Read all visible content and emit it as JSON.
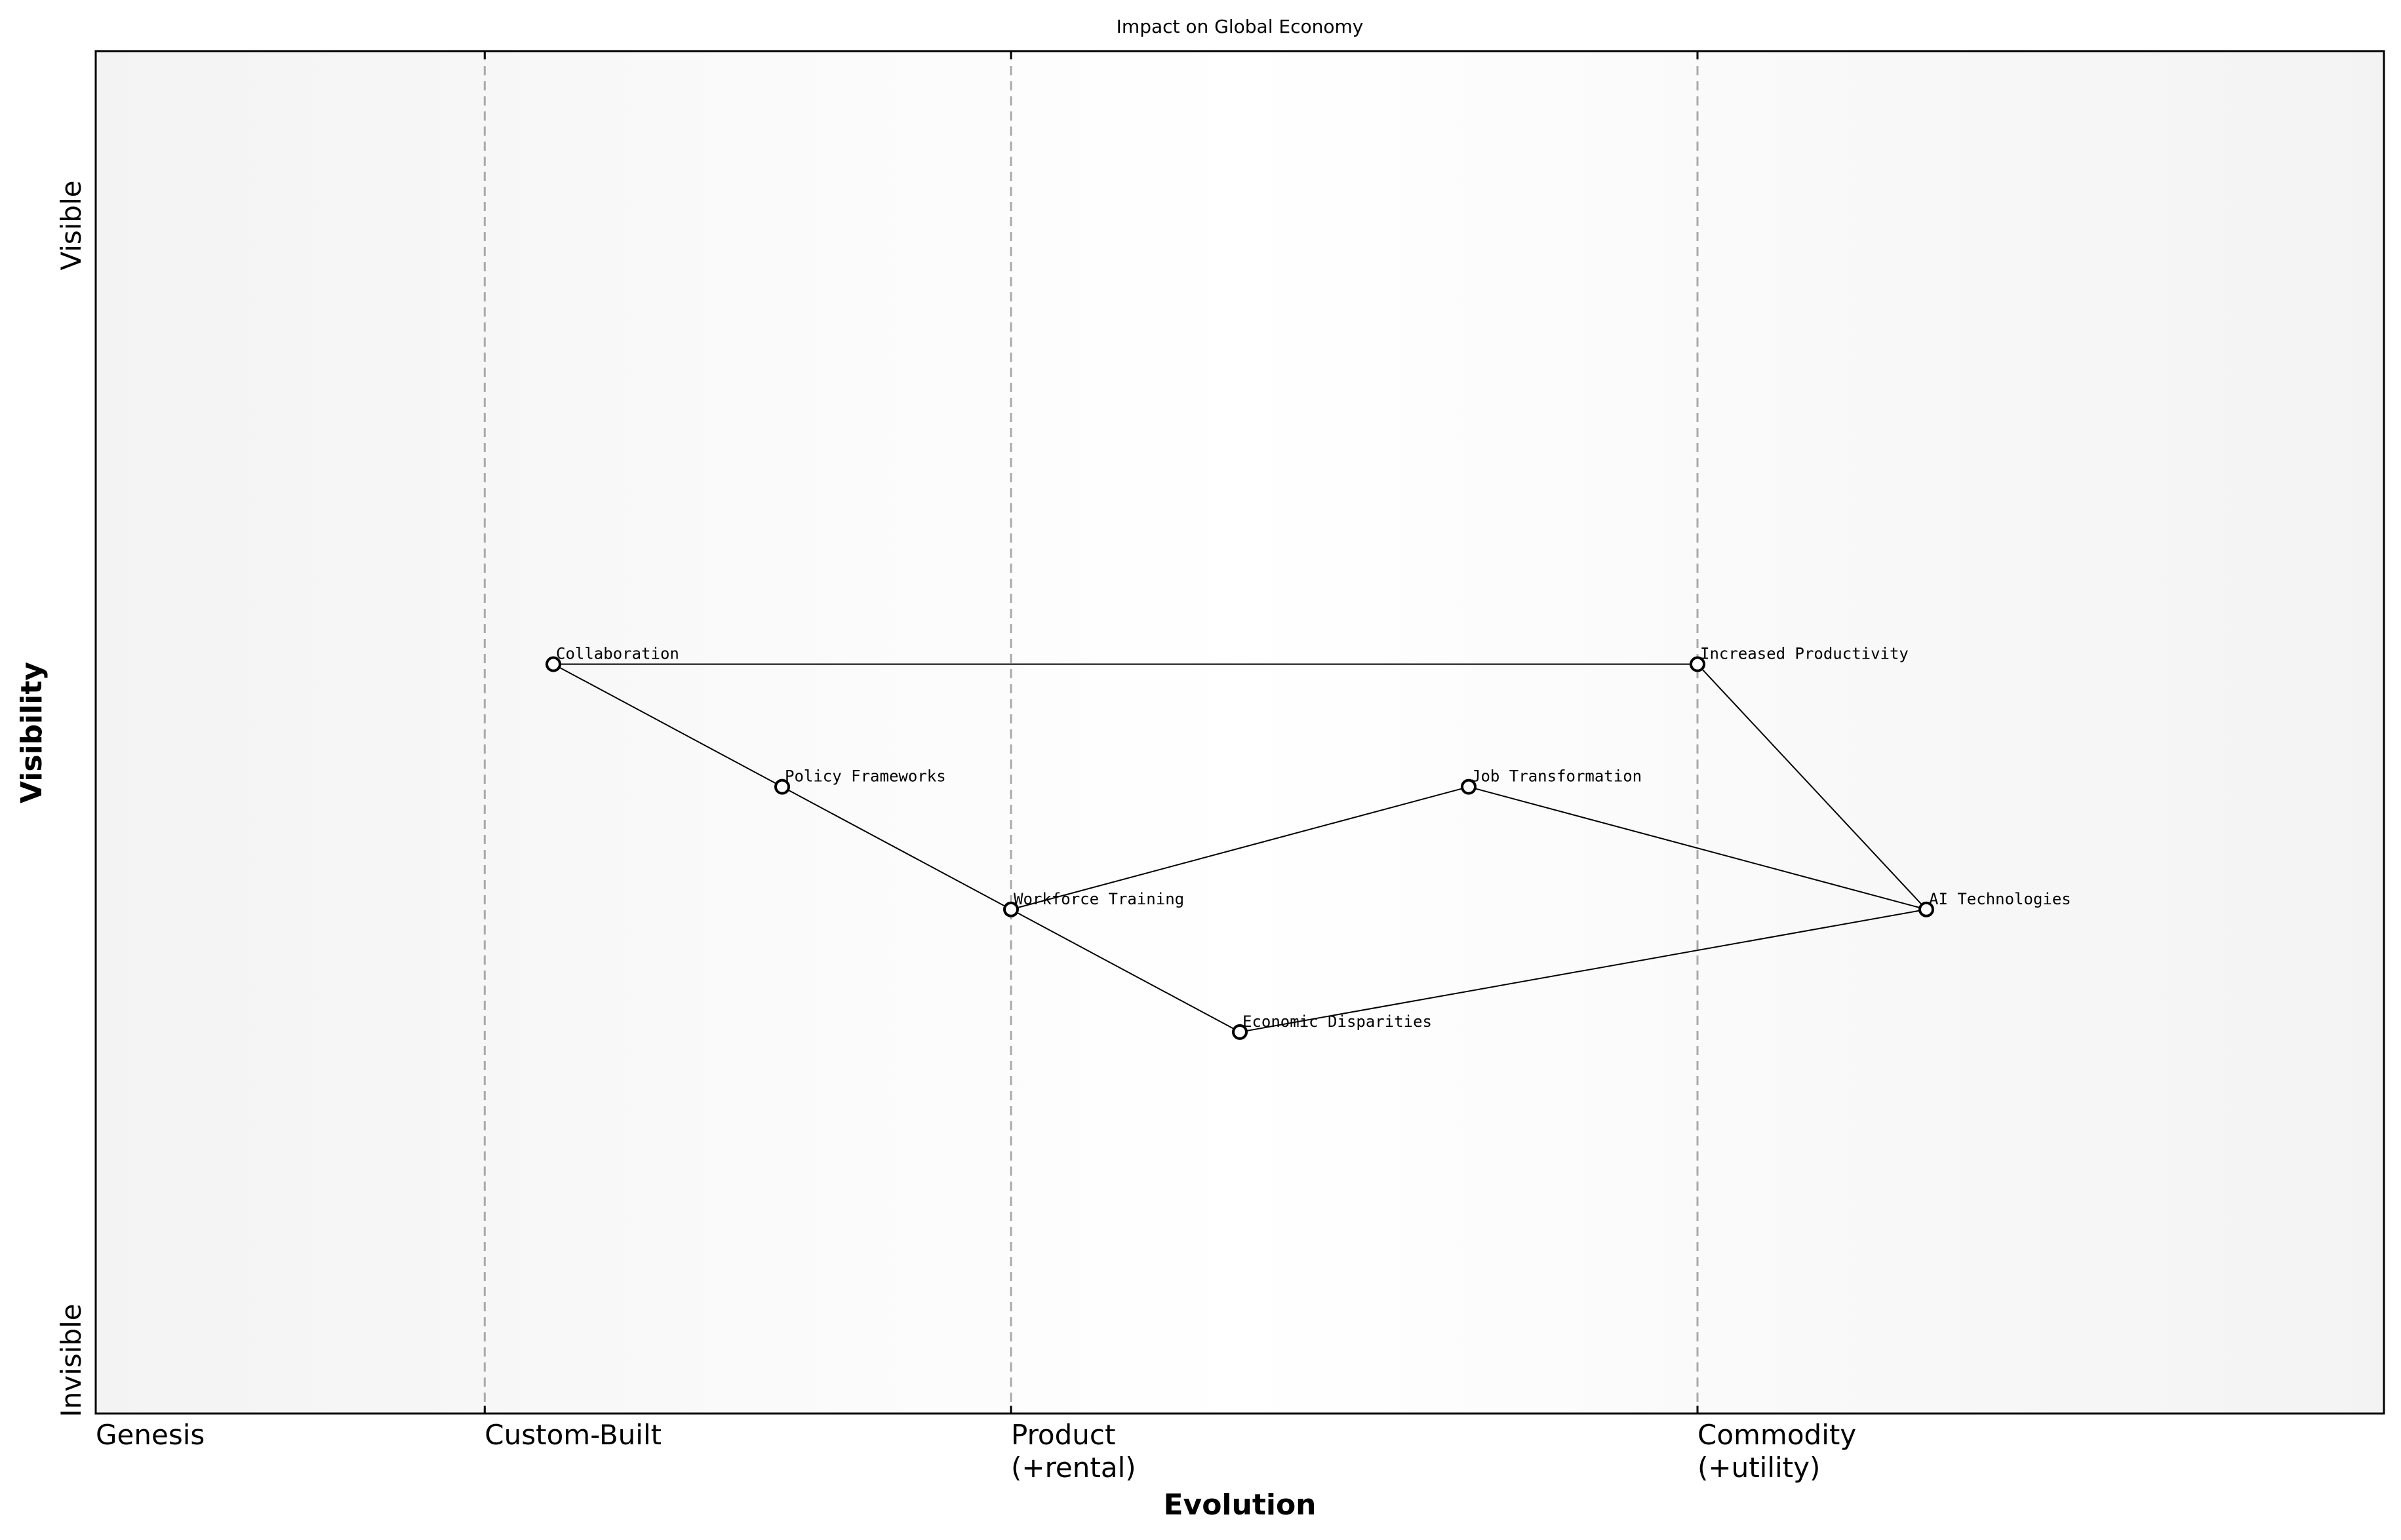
{
  "title": "Impact on Global Economy",
  "axes": {
    "x_label": "Evolution",
    "y_label": "Visibility",
    "y_top": "Visible",
    "y_bottom": "Invisible",
    "stages": [
      {
        "name": "Genesis",
        "lines": [
          "Genesis"
        ],
        "at": 0
      },
      {
        "name": "Custom-Built",
        "lines": [
          "Custom-Built"
        ],
        "at": 0.17
      },
      {
        "name": "Product",
        "lines": [
          "Product",
          "(+rental)"
        ],
        "at": 0.4
      },
      {
        "name": "Commodity",
        "lines": [
          "Commodity",
          "(+utility)"
        ],
        "at": 0.7
      }
    ]
  },
  "components": [
    {
      "id": "collaboration",
      "label": "Collaboration",
      "evolution": 0.2,
      "visibility": 0.55
    },
    {
      "id": "increased-productivity",
      "label": "Increased Productivity",
      "evolution": 0.7,
      "visibility": 0.55
    },
    {
      "id": "policy-frameworks",
      "label": "Policy Frameworks",
      "evolution": 0.3,
      "visibility": 0.46
    },
    {
      "id": "job-transformation",
      "label": "Job Transformation",
      "evolution": 0.6,
      "visibility": 0.46
    },
    {
      "id": "workforce-training",
      "label": "Workforce Training",
      "evolution": 0.4,
      "visibility": 0.37
    },
    {
      "id": "ai-technologies",
      "label": "AI Technologies",
      "evolution": 0.8,
      "visibility": 0.37
    },
    {
      "id": "economic-disparities",
      "label": "Economic Disparities",
      "evolution": 0.5,
      "visibility": 0.28
    }
  ],
  "links": [
    [
      "collaboration",
      "increased-productivity"
    ],
    [
      "collaboration",
      "policy-frameworks"
    ],
    [
      "policy-frameworks",
      "workforce-training"
    ],
    [
      "workforce-training",
      "job-transformation"
    ],
    [
      "workforce-training",
      "economic-disparities"
    ],
    [
      "job-transformation",
      "ai-technologies"
    ],
    [
      "increased-productivity",
      "ai-technologies"
    ],
    [
      "economic-disparities",
      "ai-technologies"
    ]
  ],
  "colors": {
    "frame": "#000000",
    "divider": "#a9a9a9",
    "edge_band": "#f3f3f3",
    "center_band": "#ffffff",
    "line": "#000000",
    "node_fill": "#ffffff"
  }
}
